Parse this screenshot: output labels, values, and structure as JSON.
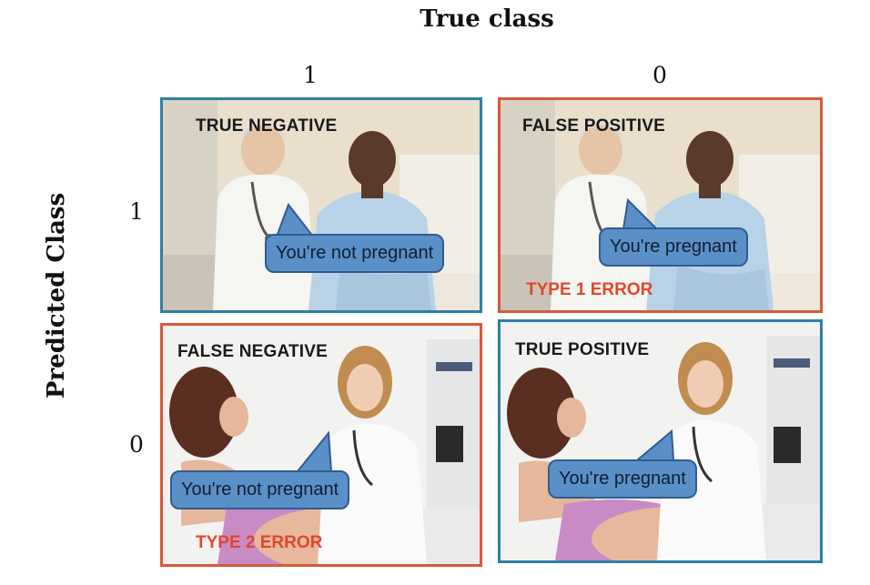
{
  "axes": {
    "x_title": "True class",
    "y_title": "Predicted Class",
    "x_ticks": [
      "1",
      "0"
    ],
    "y_ticks": [
      "1",
      "0"
    ]
  },
  "colors": {
    "correct_border": "#2e7fa6",
    "error_border": "#d65a37",
    "bubble_fill": "#5b8fc8",
    "error_text": "#e0462c"
  },
  "cells": {
    "top_left": {
      "label": "TRUE NEGATIVE",
      "speech": "You're not pregnant",
      "error": ""
    },
    "top_right": {
      "label": "FALSE POSITIVE",
      "speech": "You're pregnant",
      "error": "TYPE 1 ERROR"
    },
    "bottom_left": {
      "label": "FALSE NEGATIVE",
      "speech": "You're not pregnant",
      "error": "TYPE 2 ERROR"
    },
    "bottom_right": {
      "label": "TRUE POSITIVE",
      "speech": "You're pregnant",
      "error": ""
    }
  }
}
